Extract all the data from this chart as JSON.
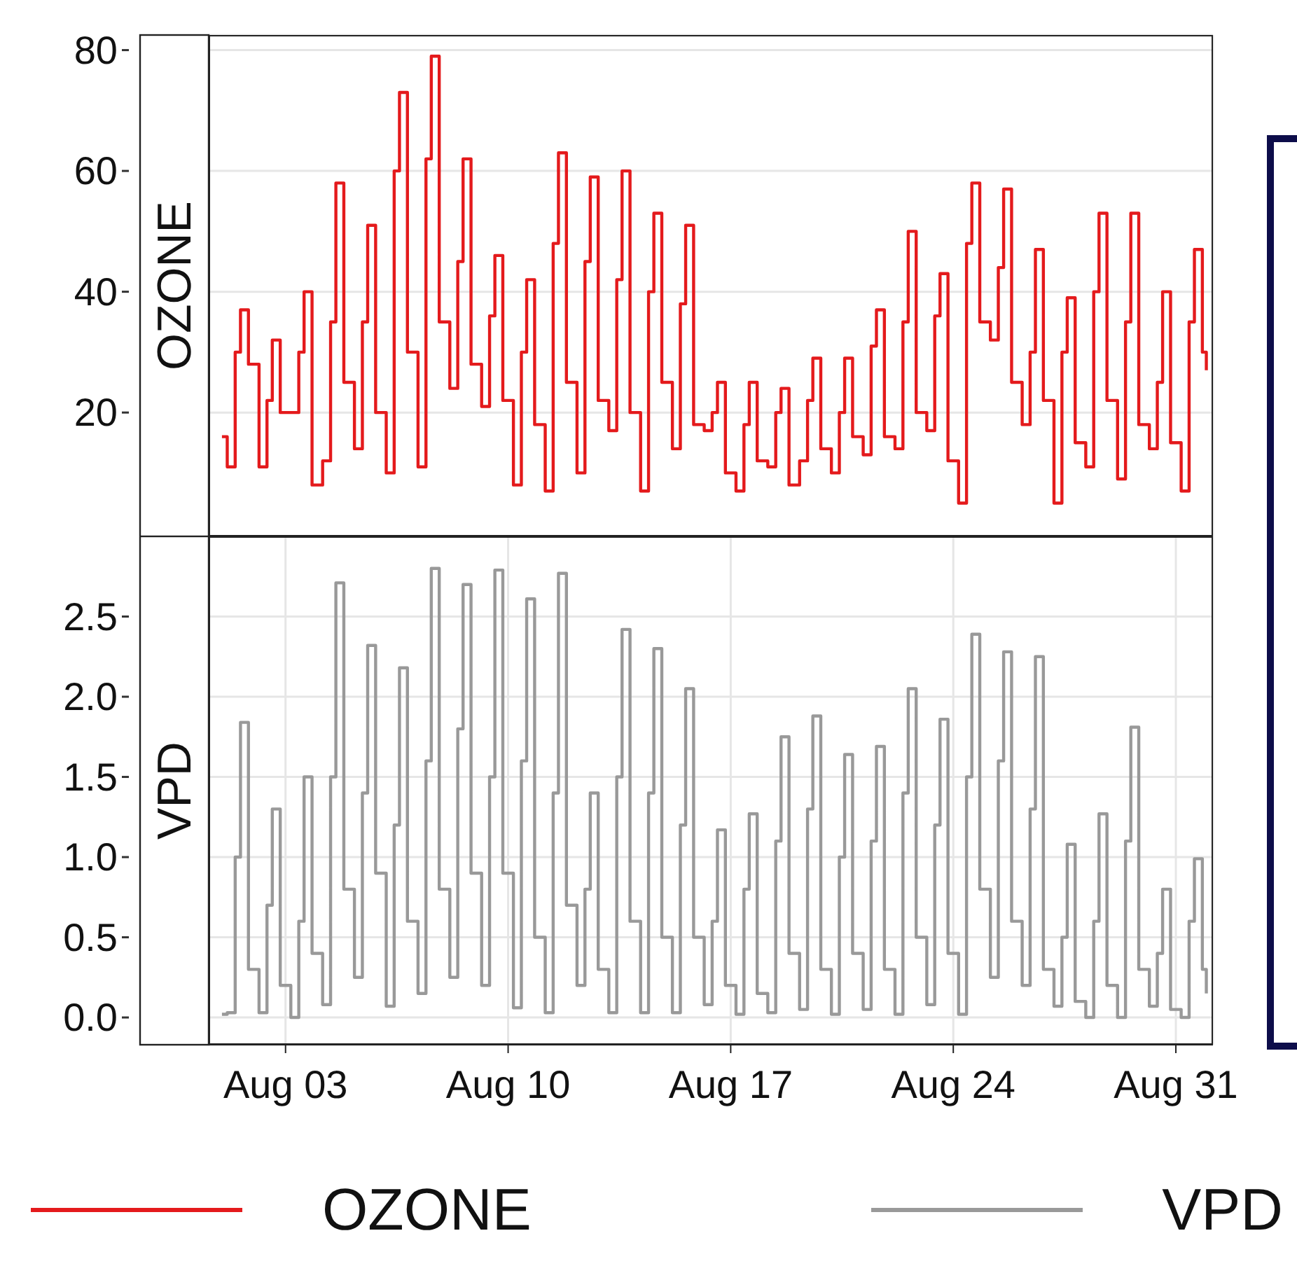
{
  "chart_data": [
    {
      "type": "step",
      "ylabel": "OZONE",
      "tick_labels": "y",
      "grid": true,
      "legend": "bottom",
      "xlim": [
        "--07-31T14:00",
        "--09-01T04:00"
      ],
      "xticks": [
        {
          "value": "--08-03",
          "label": "Aug 03"
        },
        {
          "value": "--08-10",
          "label": "Aug 10"
        },
        {
          "value": "--08-17",
          "label": "Aug 17"
        },
        {
          "value": "--08-24",
          "label": "Aug 24"
        },
        {
          "value": "--08-31",
          "label": "Aug 31"
        }
      ],
      "ylim": [
        -0.5,
        82.5
      ],
      "yticks": [
        20,
        40,
        60,
        80
      ],
      "x": [
        "--08-01T00:00",
        "--08-01T04:00",
        "--08-01T10:00",
        "--08-01T14:00",
        "--08-01T20:00",
        "--08-02T04:00",
        "--08-02T10:00",
        "--08-02T14:00",
        "--08-02T20:00",
        "--08-03T04:00",
        "--08-03T10:00",
        "--08-03T14:00",
        "--08-03T20:00",
        "--08-04T04:00",
        "--08-04T10:00",
        "--08-04T14:00",
        "--08-04T20:00",
        "--08-05T04:00",
        "--08-05T10:00",
        "--08-05T14:00",
        "--08-05T20:00",
        "--08-06T04:00",
        "--08-06T10:00",
        "--08-06T14:00",
        "--08-06T20:00",
        "--08-07T04:00",
        "--08-07T10:00",
        "--08-07T14:00",
        "--08-07T20:00",
        "--08-08T04:00",
        "--08-08T10:00",
        "--08-08T14:00",
        "--08-08T20:00",
        "--08-09T04:00",
        "--08-09T10:00",
        "--08-09T14:00",
        "--08-09T20:00",
        "--08-10T04:00",
        "--08-10T10:00",
        "--08-10T14:00",
        "--08-10T20:00",
        "--08-11T04:00",
        "--08-11T10:00",
        "--08-11T14:00",
        "--08-11T20:00",
        "--08-12T04:00",
        "--08-12T10:00",
        "--08-12T14:00",
        "--08-12T20:00",
        "--08-13T04:00",
        "--08-13T10:00",
        "--08-13T14:00",
        "--08-13T20:00",
        "--08-14T04:00",
        "--08-14T10:00",
        "--08-14T14:00",
        "--08-14T20:00",
        "--08-15T04:00",
        "--08-15T10:00",
        "--08-15T14:00",
        "--08-15T20:00",
        "--08-16T04:00",
        "--08-16T10:00",
        "--08-16T14:00",
        "--08-16T20:00",
        "--08-17T04:00",
        "--08-17T10:00",
        "--08-17T14:00",
        "--08-17T20:00",
        "--08-18T04:00",
        "--08-18T10:00",
        "--08-18T14:00",
        "--08-18T20:00",
        "--08-19T04:00",
        "--08-19T10:00",
        "--08-19T14:00",
        "--08-19T20:00",
        "--08-20T04:00",
        "--08-20T10:00",
        "--08-20T14:00",
        "--08-20T20:00",
        "--08-21T04:00",
        "--08-21T10:00",
        "--08-21T14:00",
        "--08-21T20:00",
        "--08-22T04:00",
        "--08-22T10:00",
        "--08-22T14:00",
        "--08-22T20:00",
        "--08-23T04:00",
        "--08-23T10:00",
        "--08-23T14:00",
        "--08-23T20:00",
        "--08-24T04:00",
        "--08-24T10:00",
        "--08-24T14:00",
        "--08-24T20:00",
        "--08-25T04:00",
        "--08-25T10:00",
        "--08-25T14:00",
        "--08-25T20:00",
        "--08-26T04:00",
        "--08-26T10:00",
        "--08-26T14:00",
        "--08-26T20:00",
        "--08-27T04:00",
        "--08-27T10:00",
        "--08-27T14:00",
        "--08-27T20:00",
        "--08-28T04:00",
        "--08-28T10:00",
        "--08-28T14:00",
        "--08-28T20:00",
        "--08-29T04:00",
        "--08-29T10:00",
        "--08-29T14:00",
        "--08-29T20:00",
        "--08-30T04:00",
        "--08-30T10:00",
        "--08-30T14:00",
        "--08-30T20:00",
        "--08-31T04:00",
        "--08-31T10:00",
        "--08-31T14:00",
        "--08-31T20:00",
        "--08-31T23:00"
      ],
      "series": [
        {
          "name": "OZONE",
          "color": "#e41a1c",
          "values": [
            16,
            11,
            30,
            37,
            28,
            11,
            22,
            32,
            20,
            20,
            30,
            40,
            8,
            12,
            35,
            58,
            25,
            14,
            35,
            51,
            20,
            10,
            60,
            73,
            30,
            11,
            62,
            79,
            35,
            24,
            45,
            62,
            28,
            21,
            36,
            46,
            22,
            8,
            30,
            42,
            18,
            7,
            48,
            63,
            25,
            10,
            45,
            59,
            22,
            17,
            42,
            60,
            20,
            7,
            40,
            53,
            25,
            14,
            38,
            51,
            18,
            17,
            20,
            25,
            10,
            7,
            18,
            25,
            12,
            11,
            20,
            24,
            8,
            12,
            22,
            29,
            14,
            10,
            20,
            29,
            16,
            13,
            31,
            37,
            16,
            14,
            35,
            50,
            20,
            17,
            36,
            43,
            12,
            5,
            48,
            58,
            35,
            32,
            44,
            57,
            25,
            18,
            30,
            47,
            22,
            5,
            30,
            39,
            15,
            11,
            40,
            53,
            22,
            9,
            35,
            53,
            18,
            14,
            25,
            40,
            15,
            7,
            35,
            47,
            30,
            27
          ]
        }
      ]
    },
    {
      "type": "step",
      "ylabel": "VPD",
      "grid": true,
      "legend": "bottom",
      "xlim": [
        "--07-31T14:00",
        "--09-01T04:00"
      ],
      "xticks": [
        {
          "value": "--08-03",
          "label": "Aug 03"
        },
        {
          "value": "--08-10",
          "label": "Aug 10"
        },
        {
          "value": "--08-17",
          "label": "Aug 17"
        },
        {
          "value": "--08-24",
          "label": "Aug 24"
        },
        {
          "value": "--08-31",
          "label": "Aug 31"
        }
      ],
      "ylim": [
        -0.17,
        3.0
      ],
      "yticks": [
        {
          "value": 0,
          "label": "0.0"
        },
        {
          "value": 0.5,
          "label": "0.5"
        },
        {
          "value": 1,
          "label": "1.0"
        },
        {
          "value": 1.5,
          "label": "1.5"
        },
        {
          "value": 2,
          "label": "2.0"
        },
        {
          "value": 2.5,
          "label": "2.5"
        }
      ],
      "x": [
        "--08-01T00:00",
        "--08-01T04:00",
        "--08-01T10:00",
        "--08-01T14:00",
        "--08-01T20:00",
        "--08-02T04:00",
        "--08-02T10:00",
        "--08-02T14:00",
        "--08-02T20:00",
        "--08-03T04:00",
        "--08-03T10:00",
        "--08-03T14:00",
        "--08-03T20:00",
        "--08-04T04:00",
        "--08-04T10:00",
        "--08-04T14:00",
        "--08-04T20:00",
        "--08-05T04:00",
        "--08-05T10:00",
        "--08-05T14:00",
        "--08-05T20:00",
        "--08-06T04:00",
        "--08-06T10:00",
        "--08-06T14:00",
        "--08-06T20:00",
        "--08-07T04:00",
        "--08-07T10:00",
        "--08-07T14:00",
        "--08-07T20:00",
        "--08-08T04:00",
        "--08-08T10:00",
        "--08-08T14:00",
        "--08-08T20:00",
        "--08-09T04:00",
        "--08-09T10:00",
        "--08-09T14:00",
        "--08-09T20:00",
        "--08-10T04:00",
        "--08-10T10:00",
        "--08-10T14:00",
        "--08-10T20:00",
        "--08-11T04:00",
        "--08-11T10:00",
        "--08-11T14:00",
        "--08-11T20:00",
        "--08-12T04:00",
        "--08-12T10:00",
        "--08-12T14:00",
        "--08-12T20:00",
        "--08-13T04:00",
        "--08-13T10:00",
        "--08-13T14:00",
        "--08-13T20:00",
        "--08-14T04:00",
        "--08-14T10:00",
        "--08-14T14:00",
        "--08-14T20:00",
        "--08-15T04:00",
        "--08-15T10:00",
        "--08-15T14:00",
        "--08-15T20:00",
        "--08-16T04:00",
        "--08-16T10:00",
        "--08-16T14:00",
        "--08-16T20:00",
        "--08-17T04:00",
        "--08-17T10:00",
        "--08-17T14:00",
        "--08-17T20:00",
        "--08-18T04:00",
        "--08-18T10:00",
        "--08-18T14:00",
        "--08-18T20:00",
        "--08-19T04:00",
        "--08-19T10:00",
        "--08-19T14:00",
        "--08-19T20:00",
        "--08-20T04:00",
        "--08-20T10:00",
        "--08-20T14:00",
        "--08-20T20:00",
        "--08-21T04:00",
        "--08-21T10:00",
        "--08-21T14:00",
        "--08-21T20:00",
        "--08-22T04:00",
        "--08-22T10:00",
        "--08-22T14:00",
        "--08-22T20:00",
        "--08-23T04:00",
        "--08-23T10:00",
        "--08-23T14:00",
        "--08-23T20:00",
        "--08-24T04:00",
        "--08-24T10:00",
        "--08-24T14:00",
        "--08-24T20:00",
        "--08-25T04:00",
        "--08-25T10:00",
        "--08-25T14:00",
        "--08-25T20:00",
        "--08-26T04:00",
        "--08-26T10:00",
        "--08-26T14:00",
        "--08-26T20:00",
        "--08-27T04:00",
        "--08-27T10:00",
        "--08-27T14:00",
        "--08-27T20:00",
        "--08-28T04:00",
        "--08-28T10:00",
        "--08-28T14:00",
        "--08-28T20:00",
        "--08-29T04:00",
        "--08-29T10:00",
        "--08-29T14:00",
        "--08-29T20:00",
        "--08-30T04:00",
        "--08-30T10:00",
        "--08-30T14:00",
        "--08-30T20:00",
        "--08-31T04:00",
        "--08-31T10:00",
        "--08-31T14:00",
        "--08-31T20:00",
        "--08-31T23:00"
      ],
      "series": [
        {
          "name": "VPD",
          "color": "#999999",
          "values": [
            0.02,
            0.03,
            1.0,
            1.84,
            0.3,
            0.03,
            0.7,
            1.3,
            0.2,
            0.0,
            0.6,
            1.5,
            0.4,
            0.08,
            1.5,
            2.71,
            0.8,
            0.25,
            1.4,
            2.32,
            0.9,
            0.07,
            1.2,
            2.18,
            0.6,
            0.15,
            1.6,
            2.8,
            0.8,
            0.25,
            1.8,
            2.7,
            0.9,
            0.2,
            1.5,
            2.79,
            0.9,
            0.06,
            1.6,
            2.61,
            0.5,
            0.03,
            1.4,
            2.77,
            0.7,
            0.2,
            0.8,
            1.4,
            0.3,
            0.03,
            1.5,
            2.42,
            0.6,
            0.03,
            1.4,
            2.3,
            0.5,
            0.03,
            1.2,
            2.05,
            0.5,
            0.08,
            0.6,
            1.17,
            0.2,
            0.02,
            0.8,
            1.27,
            0.15,
            0.03,
            1.1,
            1.75,
            0.4,
            0.05,
            1.3,
            1.88,
            0.3,
            0.02,
            1.0,
            1.64,
            0.4,
            0.05,
            1.1,
            1.69,
            0.3,
            0.02,
            1.4,
            2.05,
            0.5,
            0.08,
            1.2,
            1.86,
            0.4,
            0.02,
            1.5,
            2.39,
            0.8,
            0.25,
            1.6,
            2.28,
            0.6,
            0.2,
            1.3,
            2.25,
            0.3,
            0.07,
            0.5,
            1.08,
            0.1,
            0.0,
            0.6,
            1.27,
            0.2,
            0.0,
            1.1,
            1.81,
            0.3,
            0.07,
            0.4,
            0.8,
            0.05,
            0.0,
            0.6,
            0.99,
            0.3,
            0.15
          ]
        }
      ]
    }
  ]
}
